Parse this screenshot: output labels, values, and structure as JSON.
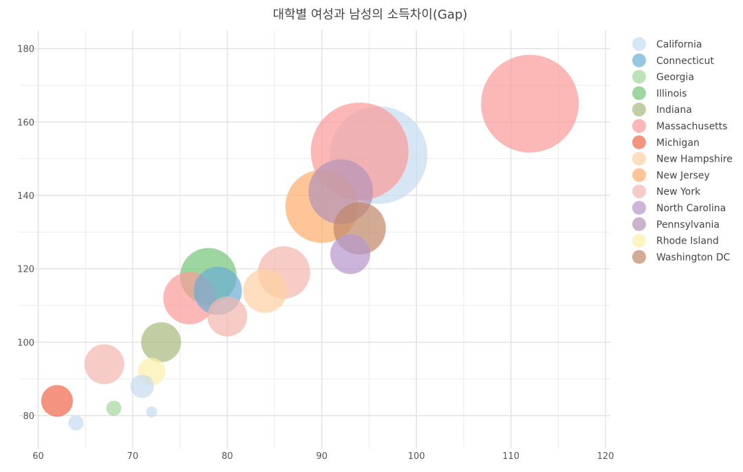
{
  "chart_data": {
    "type": "scatter",
    "variant": "bubble",
    "title": "대학별 여성과 남성의 소득차이(Gap)",
    "xlabel": "",
    "ylabel": "",
    "xlim": [
      58,
      120.5
    ],
    "ylim": [
      71,
      185
    ],
    "x_ticks": [
      60,
      70,
      80,
      90,
      100,
      110,
      120
    ],
    "y_ticks": [
      80,
      100,
      120,
      140,
      160,
      180
    ],
    "grid": true,
    "legend_position": "right",
    "opacity": 0.7,
    "series": [
      {
        "name": "California",
        "color": "#c6dbef",
        "points": [
          {
            "x": 64,
            "y": 78,
            "size": 2
          },
          {
            "x": 71,
            "y": 88,
            "size": 4
          },
          {
            "x": 72,
            "y": 81,
            "size": 1
          },
          {
            "x": 96,
            "y": 151,
            "size": 22
          }
        ]
      },
      {
        "name": "Connecticut",
        "color": "#6baed6",
        "points": [
          {
            "x": 79,
            "y": 114,
            "size": 10
          }
        ]
      },
      {
        "name": "Georgia",
        "color": "#a1d99b",
        "points": [
          {
            "x": 68,
            "y": 82,
            "size": 2
          }
        ]
      },
      {
        "name": "Illinois",
        "color": "#74c476",
        "points": [
          {
            "x": 78,
            "y": 118,
            "size": 12
          }
        ]
      },
      {
        "name": "Indiana",
        "color": "#a6b87a",
        "points": [
          {
            "x": 73,
            "y": 100,
            "size": 8
          }
        ]
      },
      {
        "name": "Massachusetts",
        "color": "#fb9a99",
        "points": [
          {
            "x": 76,
            "y": 112,
            "size": 11
          },
          {
            "x": 94,
            "y": 152,
            "size": 22
          },
          {
            "x": 112,
            "y": 165,
            "size": 22
          }
        ]
      },
      {
        "name": "Michigan",
        "color": "#ef6548",
        "points": [
          {
            "x": 62,
            "y": 84,
            "size": 6
          }
        ]
      },
      {
        "name": "New Hampshire",
        "color": "#fdd0a2",
        "points": [
          {
            "x": 84,
            "y": 114,
            "size": 9
          }
        ]
      },
      {
        "name": "New Jersey",
        "color": "#fdae6b",
        "points": [
          {
            "x": 90,
            "y": 137,
            "size": 16
          }
        ]
      },
      {
        "name": "New York",
        "color": "#f4b6ae",
        "points": [
          {
            "x": 67,
            "y": 94,
            "size": 8
          },
          {
            "x": 80,
            "y": 107,
            "size": 8
          },
          {
            "x": 86,
            "y": 119,
            "size": 11
          }
        ]
      },
      {
        "name": "North Carolina",
        "color": "#b596cc",
        "points": [
          {
            "x": 93,
            "y": 124,
            "size": 8
          }
        ]
      },
      {
        "name": "Pennsylvania",
        "color": "#b493b8",
        "points": [
          {
            "x": 92,
            "y": 141,
            "size": 14
          }
        ]
      },
      {
        "name": "Rhode Island",
        "color": "#fbf0a8",
        "points": [
          {
            "x": 72,
            "y": 92,
            "size": 5
          }
        ]
      },
      {
        "name": "Washington DC",
        "color": "#c08868",
        "points": [
          {
            "x": 94,
            "y": 131,
            "size": 11
          }
        ]
      }
    ]
  }
}
